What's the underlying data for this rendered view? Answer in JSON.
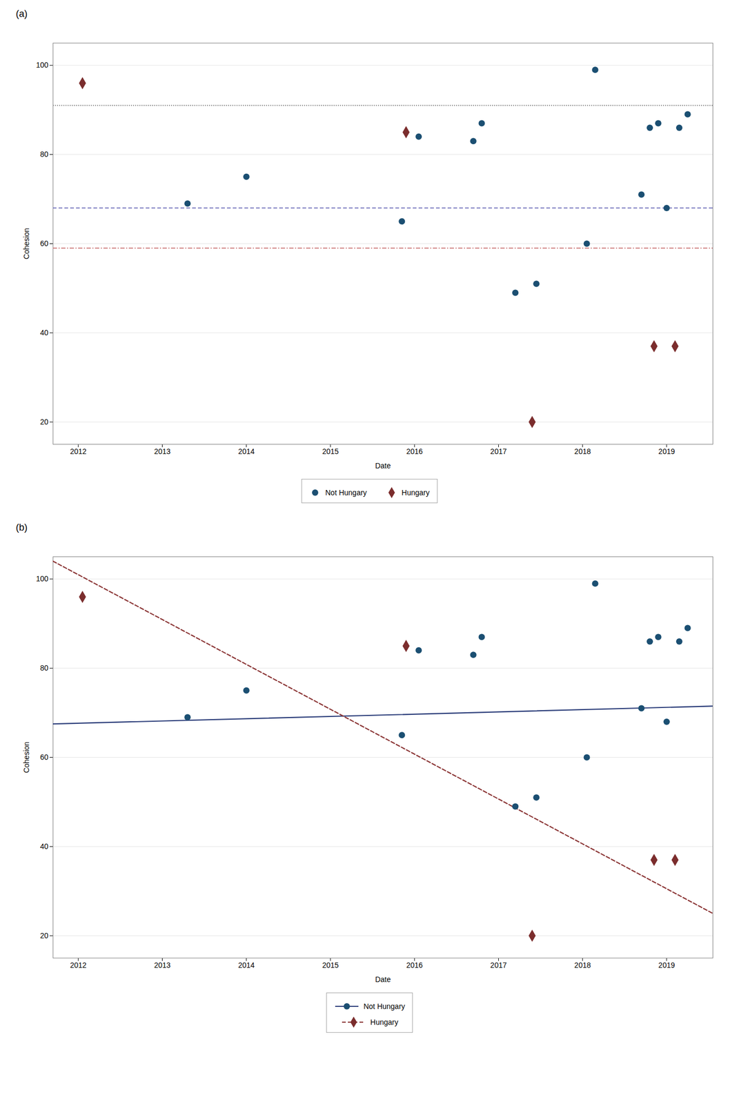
{
  "chart_data": [
    {
      "type": "scatter",
      "title": "(a)",
      "xlabel": "Date",
      "ylabel": "Cohesion",
      "series": [
        {
          "name": "Not Hungary",
          "color": "#1b4f72",
          "marker": "circle",
          "x": [
            2013.3,
            2014.0,
            2015.85,
            2016.05,
            2016.7,
            2016.8,
            2017.2,
            2017.45,
            2018.05,
            2018.15,
            2018.7,
            2018.8,
            2018.9,
            2019.0,
            2019.15,
            2019.25
          ],
          "values": [
            69,
            75,
            65,
            84,
            83,
            87,
            49,
            51,
            60,
            99,
            71,
            86,
            87,
            68,
            86,
            89
          ]
        },
        {
          "name": "Hungary",
          "color": "#7b2d2d",
          "marker": "diamond",
          "x": [
            2012.05,
            2015.9,
            2017.4,
            2018.85,
            2019.1
          ],
          "values": [
            96,
            85,
            20,
            37,
            37
          ]
        }
      ],
      "reference_lines": [
        {
          "value": 91,
          "color": "#888888",
          "line_style": "dotted"
        },
        {
          "value": 68,
          "color": "#7070bb",
          "line_style": "dashed"
        },
        {
          "value": 59,
          "color": "#cc7777",
          "line_style": "dashdot"
        }
      ],
      "xlim": [
        2011.7,
        2019.55
      ],
      "ylim": [
        15,
        105
      ],
      "xticks": [
        2012,
        2013,
        2014,
        2015,
        2016,
        2017,
        2018,
        2019
      ],
      "yticks": [
        20,
        40,
        60,
        80,
        100
      ],
      "grid": "y",
      "legend": "bottom"
    },
    {
      "type": "scatter",
      "title": "(b)",
      "xlabel": "Date",
      "ylabel": "Cohesion",
      "series": [
        {
          "name": "Not Hungary",
          "color": "#1b4f72",
          "marker": "circle",
          "x": [
            2013.3,
            2014.0,
            2015.85,
            2016.05,
            2016.7,
            2016.8,
            2017.2,
            2017.45,
            2018.05,
            2018.15,
            2018.7,
            2018.8,
            2018.9,
            2019.0,
            2019.15,
            2019.25
          ],
          "values": [
            69,
            75,
            65,
            84,
            83,
            87,
            49,
            51,
            60,
            99,
            71,
            86,
            87,
            68,
            86,
            89
          ],
          "trend": {
            "x": [
              2011.7,
              2019.55
            ],
            "values": [
              67.5,
              71.5
            ],
            "color": "#2c3e7a",
            "line_style": "solid"
          }
        },
        {
          "name": "Hungary",
          "color": "#7b2d2d",
          "marker": "diamond",
          "x": [
            2012.05,
            2015.9,
            2017.4,
            2018.85,
            2019.1
          ],
          "values": [
            96,
            85,
            20,
            37,
            37
          ],
          "trend": {
            "x": [
              2011.7,
              2019.55
            ],
            "values": [
              104,
              25
            ],
            "color": "#8b3535",
            "line_style": "dashed"
          }
        }
      ],
      "xlim": [
        2011.7,
        2019.55
      ],
      "ylim": [
        15,
        105
      ],
      "xticks": [
        2012,
        2013,
        2014,
        2015,
        2016,
        2017,
        2018,
        2019
      ],
      "yticks": [
        20,
        40,
        60,
        80,
        100
      ],
      "grid": "y",
      "legend": "bottom"
    }
  ]
}
